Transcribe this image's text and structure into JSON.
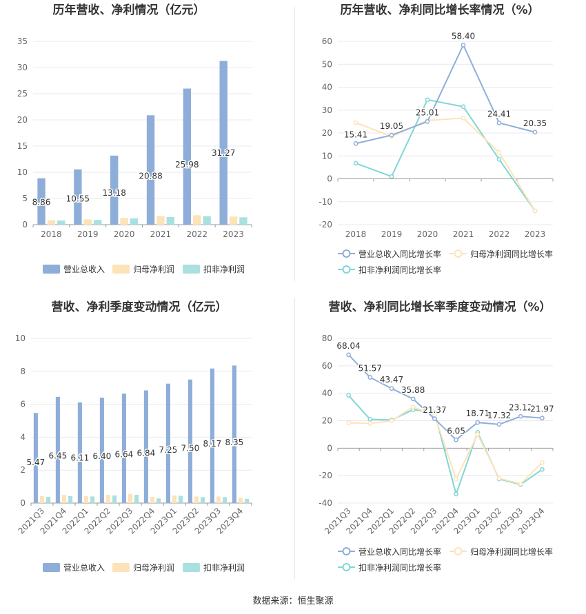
{
  "source_note": "数据来源：恒生聚源",
  "colors": {
    "revenue": "#8eaed9",
    "net_profit": "#fde3b8",
    "deducted_profit": "#a9e0e0",
    "rev_line": "#8eaed9",
    "np_line": "#fde3b8",
    "dp_line": "#7fd6d6",
    "grid": "#e8e8ee",
    "axis_text": "#666666",
    "title": "#333333"
  },
  "chart_data": [
    {
      "id": "annual_bar",
      "type": "bar",
      "title": "历年营收、净利情况（亿元）",
      "categories": [
        "2018",
        "2019",
        "2020",
        "2021",
        "2022",
        "2023"
      ],
      "ylim": [
        0,
        35
      ],
      "yticks": [
        0,
        5,
        10,
        15,
        20,
        25,
        30,
        35
      ],
      "series": [
        {
          "name": "营业总收入",
          "values": [
            8.86,
            10.55,
            13.18,
            20.88,
            25.98,
            31.27
          ],
          "labels": [
            "8.86",
            "10.55",
            "13.18",
            "20.88",
            "25.98",
            "31.27"
          ]
        },
        {
          "name": "归母净利润",
          "values": [
            0.85,
            1.0,
            1.3,
            1.65,
            1.8,
            1.55
          ]
        },
        {
          "name": "扣非净利润",
          "values": [
            0.8,
            0.9,
            1.2,
            1.45,
            1.6,
            1.4
          ]
        }
      ],
      "legend": "bottom",
      "grid": true
    },
    {
      "id": "annual_line",
      "type": "line",
      "title": "历年营收、净利同比增长率情况（%）",
      "categories": [
        "2018",
        "2019",
        "2020",
        "2021",
        "2022",
        "2023"
      ],
      "ylim": [
        -20,
        60
      ],
      "yticks": [
        -20,
        -10,
        0,
        10,
        20,
        30,
        40,
        50,
        60
      ],
      "series": [
        {
          "name": "营业总收入同比增长率",
          "values": [
            15.41,
            19.05,
            25.01,
            58.4,
            24.41,
            20.35
          ],
          "labels": [
            "15.41",
            "19.05",
            "25.01",
            "58.40",
            "24.41",
            "20.35"
          ]
        },
        {
          "name": "归母净利润同比增长率",
          "values": [
            24.5,
            18.5,
            25.5,
            26.5,
            11.5,
            -14.0
          ]
        },
        {
          "name": "扣非净利润同比增长率",
          "values": [
            6.8,
            1.0,
            34.5,
            31.5,
            8.5,
            -14.0
          ]
        }
      ],
      "legend": "bottom",
      "grid": true
    },
    {
      "id": "quarter_bar",
      "type": "bar",
      "title": "营收、净利季度变动情况（亿元）",
      "categories": [
        "2021Q3",
        "2021Q4",
        "2022Q1",
        "2022Q2",
        "2022Q3",
        "2022Q4",
        "2023Q1",
        "2023Q2",
        "2023Q3",
        "2023Q4"
      ],
      "ylim": [
        0,
        10
      ],
      "yticks": [
        0,
        2,
        4,
        6,
        8,
        10
      ],
      "series": [
        {
          "name": "营业总收入",
          "values": [
            5.47,
            6.45,
            6.11,
            6.4,
            6.64,
            6.84,
            7.25,
            7.5,
            8.17,
            8.35
          ],
          "labels": [
            "5.47",
            "6.45",
            "6.11",
            "6.40",
            "6.64",
            "6.84",
            "7.25",
            "7.50",
            "8.17",
            "8.35"
          ]
        },
        {
          "name": "归母净利润",
          "values": [
            0.42,
            0.5,
            0.42,
            0.5,
            0.55,
            0.38,
            0.46,
            0.4,
            0.4,
            0.32
          ]
        },
        {
          "name": "扣非净利润",
          "values": [
            0.38,
            0.42,
            0.4,
            0.46,
            0.5,
            0.28,
            0.44,
            0.36,
            0.36,
            0.26
          ]
        }
      ],
      "legend": "bottom",
      "grid": true
    },
    {
      "id": "quarter_line",
      "type": "line",
      "title": "营收、净利同比增长率季度变动情况（%）",
      "categories": [
        "2021Q3",
        "2021Q4",
        "2022Q1",
        "2022Q2",
        "2022Q3",
        "2022Q4",
        "2023Q1",
        "2023Q2",
        "2023Q3",
        "2023Q4"
      ],
      "ylim": [
        -40,
        80
      ],
      "yticks": [
        -40,
        -20,
        0,
        20,
        40,
        60,
        80
      ],
      "series": [
        {
          "name": "营业总收入同比增长率",
          "values": [
            68.04,
            51.57,
            43.47,
            35.88,
            21.37,
            6.05,
            18.71,
            17.32,
            23.12,
            21.97
          ],
          "labels": [
            "68.04",
            "51.57",
            "43.47",
            "35.88",
            "21.37",
            "6.05",
            "18.71",
            "17.32",
            "23.12",
            "21.97"
          ]
        },
        {
          "name": "归母净利润同比增长率",
          "values": [
            18.5,
            18.0,
            20.0,
            30.0,
            24.0,
            -22.5,
            10.0,
            -22.0,
            -26.0,
            -10.5
          ]
        },
        {
          "name": "扣非净利润同比增长率",
          "values": [
            38.5,
            21.0,
            20.5,
            28.0,
            26.0,
            -33.5,
            11.5,
            -22.5,
            -26.5,
            -15.5
          ]
        }
      ],
      "legend": "bottom",
      "grid": true
    }
  ]
}
